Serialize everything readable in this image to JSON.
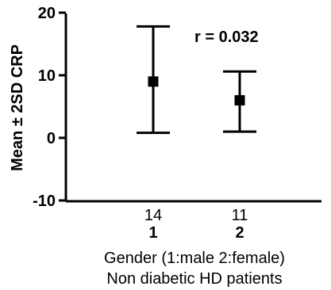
{
  "chart_data": {
    "type": "errorbar",
    "xlabel": "Gender (1:male 2:female)",
    "subtitle": "Non diabetic HD patients",
    "ylabel": "Mean ± 2SD CRP",
    "ylim": [
      -10,
      20
    ],
    "yticks": [
      "20",
      "10",
      "0",
      "-10"
    ],
    "yticks_values": [
      20,
      10,
      0,
      -10
    ],
    "annotation": "r = 0.032",
    "categories": [
      "1",
      "2"
    ],
    "counts": [
      "14",
      "11"
    ],
    "series": [
      {
        "points": [
          {
            "category": "1",
            "mean": 9,
            "lower": 0.8,
            "upper": 17.8
          },
          {
            "category": "2",
            "mean": 6,
            "lower": 1.0,
            "upper": 10.6
          }
        ]
      }
    ],
    "grid": false,
    "colors": {
      "ink": "#000000",
      "background": "#ffffff"
    }
  }
}
